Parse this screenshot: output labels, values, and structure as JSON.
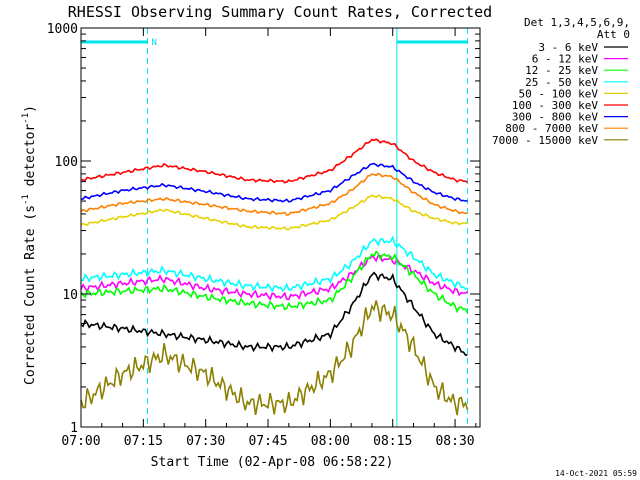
{
  "chart_data": {
    "type": "line",
    "title": "RHESSI Observing Summary Count Rates, Corrected",
    "xlabel": "Start Time (02-Apr-08 06:58:22)",
    "ylabel": "Corrected Count Rate (s",
    "ylabel_sup1": "-1",
    "ylabel_mid": " detector",
    "ylabel_sup2": "-1",
    "ylabel_end": ")",
    "yscale": "log",
    "xlim": [
      "07:00",
      "08:36"
    ],
    "ylim": [
      1,
      1000
    ],
    "x_ticks": [
      "07:00",
      "07:15",
      "07:30",
      "07:45",
      "08:00",
      "08:15",
      "08:30"
    ],
    "y_ticks": [
      "1",
      "10",
      "100",
      "1000"
    ],
    "legend": {
      "placement": "right",
      "header1": "Det 1,3,4,5,6,9,",
      "header2": "Att 0"
    },
    "series": [
      {
        "name": "3 - 6 keV",
        "color": "#000000",
        "x": [
          "07:00",
          "07:10",
          "07:20",
          "07:30",
          "07:40",
          "07:50",
          "08:00",
          "08:05",
          "08:10",
          "08:15",
          "08:20",
          "08:25",
          "08:30",
          "08:33"
        ],
        "y": [
          6,
          5.5,
          5,
          4.5,
          4,
          4,
          5,
          8,
          14,
          13,
          8,
          5,
          4,
          3.5
        ]
      },
      {
        "name": "6 - 12 keV",
        "color": "#ff00ff",
        "x": [
          "07:00",
          "07:10",
          "07:20",
          "07:30",
          "07:40",
          "07:50",
          "08:00",
          "08:05",
          "08:10",
          "08:15",
          "08:20",
          "08:25",
          "08:30",
          "08:33"
        ],
        "y": [
          11,
          12,
          13,
          11,
          10,
          9.5,
          11,
          14,
          19,
          18,
          15,
          12,
          10.5,
          10
        ]
      },
      {
        "name": "12 - 25 keV",
        "color": "#00ff00",
        "x": [
          "07:00",
          "07:10",
          "07:20",
          "07:30",
          "07:40",
          "07:50",
          "08:00",
          "08:05",
          "08:10",
          "08:15",
          "08:20",
          "08:25",
          "08:30",
          "08:33"
        ],
        "y": [
          10,
          10.5,
          11,
          9.5,
          8.5,
          8,
          9,
          13,
          20,
          19,
          14,
          10,
          8,
          7.5
        ]
      },
      {
        "name": "25 - 50 keV",
        "color": "#00ffff",
        "x": [
          "07:00",
          "07:10",
          "07:20",
          "07:30",
          "07:40",
          "07:50",
          "08:00",
          "08:05",
          "08:10",
          "08:15",
          "08:20",
          "08:25",
          "08:30",
          "08:33"
        ],
        "y": [
          13,
          14,
          15,
          13,
          11.5,
          11,
          13,
          17,
          25,
          25,
          19,
          14,
          12,
          11
        ]
      },
      {
        "name": "50 - 100 keV",
        "color": "#e6d200",
        "x": [
          "07:00",
          "07:10",
          "07:20",
          "07:30",
          "07:40",
          "07:50",
          "08:00",
          "08:05",
          "08:10",
          "08:15",
          "08:20",
          "08:25",
          "08:30",
          "08:33"
        ],
        "y": [
          33,
          38,
          43,
          37,
          32,
          31,
          36,
          44,
          55,
          52,
          42,
          37,
          34,
          34
        ]
      },
      {
        "name": "100 - 300 keV",
        "color": "#ff0000",
        "x": [
          "07:00",
          "07:10",
          "07:20",
          "07:30",
          "07:40",
          "07:50",
          "08:00",
          "08:05",
          "08:10",
          "08:15",
          "08:20",
          "08:25",
          "08:30",
          "08:33"
        ],
        "y": [
          72,
          82,
          93,
          83,
          72,
          70,
          85,
          110,
          145,
          135,
          100,
          82,
          72,
          70
        ]
      },
      {
        "name": "300 - 800 keV",
        "color": "#0000ff",
        "x": [
          "07:00",
          "07:10",
          "07:20",
          "07:30",
          "07:40",
          "07:50",
          "08:00",
          "08:05",
          "08:10",
          "08:15",
          "08:20",
          "08:25",
          "08:30",
          "08:33"
        ],
        "y": [
          52,
          60,
          66,
          59,
          52,
          50,
          60,
          76,
          95,
          90,
          70,
          58,
          52,
          50
        ]
      },
      {
        "name": "800 - 7000 keV",
        "color": "#ff8000",
        "x": [
          "07:00",
          "07:10",
          "07:20",
          "07:30",
          "07:40",
          "07:50",
          "08:00",
          "08:05",
          "08:10",
          "08:15",
          "08:20",
          "08:25",
          "08:30",
          "08:33"
        ],
        "y": [
          42,
          48,
          52,
          47,
          42,
          40,
          48,
          60,
          80,
          76,
          58,
          47,
          42,
          40
        ]
      },
      {
        "name": "7000 - 15000 keV",
        "color": "#8b8000",
        "x": [
          "07:00",
          "07:10",
          "07:20",
          "07:30",
          "07:40",
          "07:50",
          "08:00",
          "08:05",
          "08:10",
          "08:15",
          "08:20",
          "08:25",
          "08:30",
          "08:33"
        ],
        "y": [
          1.5,
          2.5,
          3.5,
          2.5,
          1.5,
          1.5,
          2.5,
          4,
          8,
          7,
          4,
          2,
          1.5,
          1.5
        ]
      }
    ],
    "flag_bars": [
      {
        "label": "N",
        "x_start": "07:00",
        "x_end": "07:16",
        "color": "#00e5ee"
      },
      {
        "label": "",
        "x_start": "08:16",
        "x_end": "08:33",
        "color": "#00e5ee"
      }
    ],
    "vlines_dashed": [
      "07:16",
      "08:33"
    ],
    "vlines_solid": [
      "08:16"
    ],
    "grid": false,
    "footer_timestamp": "14-Oct-2021 05:59"
  }
}
